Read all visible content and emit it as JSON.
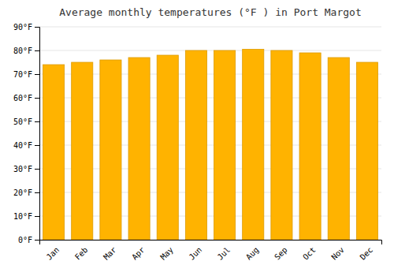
{
  "chart_data": {
    "type": "bar",
    "title": "Average monthly temperatures (°F ) in Port Margot",
    "categories": [
      "Jan",
      "Feb",
      "Mar",
      "Apr",
      "May",
      "Jun",
      "Jul",
      "Aug",
      "Sep",
      "Oct",
      "Nov",
      "Dec"
    ],
    "values": [
      74,
      75,
      76,
      77,
      78,
      80,
      80,
      80.5,
      80,
      79,
      77,
      75
    ],
    "color": "#FFB300",
    "ylim": [
      0,
      90
    ],
    "yticks": [
      {
        "value": 0,
        "label": "0°F"
      },
      {
        "value": 10,
        "label": "10°F"
      },
      {
        "value": 20,
        "label": "20°F"
      },
      {
        "value": 30,
        "label": "30°F"
      },
      {
        "value": 40,
        "label": "40°F"
      },
      {
        "value": 50,
        "label": "50°F"
      },
      {
        "value": 60,
        "label": "60°F"
      },
      {
        "value": 70,
        "label": "70°F"
      },
      {
        "value": 80,
        "label": "80°F"
      },
      {
        "value": 90,
        "label": "90°F"
      }
    ],
    "grid": true
  }
}
